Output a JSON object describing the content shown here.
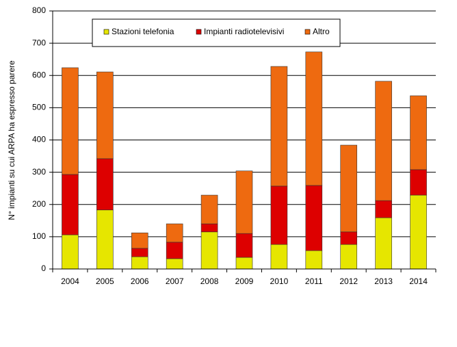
{
  "chart_data": {
    "type": "stacked-bar",
    "y_label": "N° impianti su cui ARPA ha espresso parere",
    "categories": [
      "2004",
      "2005",
      "2006",
      "2007",
      "2008",
      "2009",
      "2010",
      "2011",
      "2012",
      "2013",
      "2014"
    ],
    "series": [
      {
        "name": "Stazioni telefonia",
        "color": "#e6e600",
        "values": [
          106,
          183,
          38,
          32,
          115,
          36,
          76,
          57,
          76,
          159,
          229
        ]
      },
      {
        "name": "Impianti radiotelevisivi",
        "color": "#dd0000",
        "values": [
          187,
          159,
          26,
          51,
          25,
          74,
          181,
          202,
          39,
          53,
          79
        ]
      },
      {
        "name": "Altro",
        "color": "#ee6a10",
        "values": [
          331,
          269,
          48,
          57,
          89,
          194,
          371,
          414,
          269,
          370,
          229
        ]
      }
    ],
    "ylim": [
      0,
      800
    ],
    "yticks": [
      0,
      100,
      200,
      300,
      400,
      500,
      600,
      700,
      800
    ],
    "grid": true
  }
}
